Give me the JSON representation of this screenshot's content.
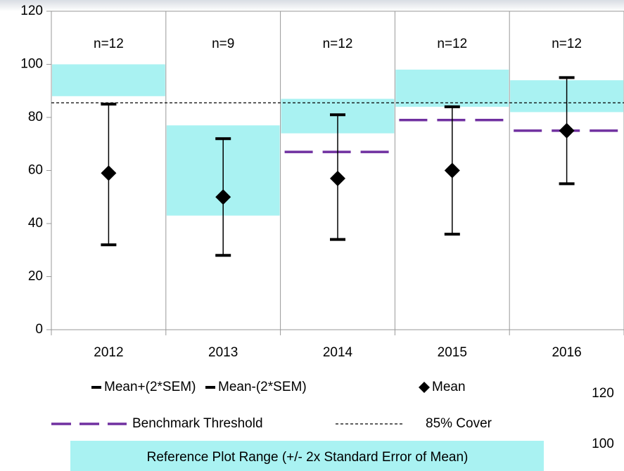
{
  "chart_data": {
    "type": "errorbar",
    "categories": [
      "2012",
      "2013",
      "2014",
      "2015",
      "2016"
    ],
    "ylim": [
      0,
      120
    ],
    "yticks": [
      0,
      20,
      40,
      60,
      80,
      100,
      120
    ],
    "annotations": [
      "n=12",
      "n=9",
      "n=12",
      "n=12",
      "n=12"
    ],
    "annotation_level": 107.5,
    "series": [
      {
        "name": "Mean+(2*SEM)",
        "color": "#000000",
        "values": [
          85,
          72,
          81,
          84,
          95
        ]
      },
      {
        "name": "Mean-(2*SEM)",
        "color": "#000000",
        "values": [
          32,
          28,
          34,
          36,
          55
        ]
      },
      {
        "name": "Mean",
        "color": "#000000",
        "values": [
          59,
          50,
          57,
          60,
          75
        ]
      },
      {
        "name": "Benchmark Threshold",
        "color": "#7030a0",
        "values": [
          null,
          null,
          67,
          79,
          75
        ]
      },
      {
        "name": "85% Cover",
        "color": "#000000",
        "value": 85.5
      },
      {
        "name": "Reference Plot Range (+/- 2x Standard Error of Mean)",
        "color": "#a9f2f2",
        "low": [
          88,
          43,
          74,
          84,
          82
        ],
        "high": [
          100,
          77,
          87,
          98,
          94
        ]
      }
    ],
    "extra_labels": [
      "120",
      "100"
    ]
  }
}
